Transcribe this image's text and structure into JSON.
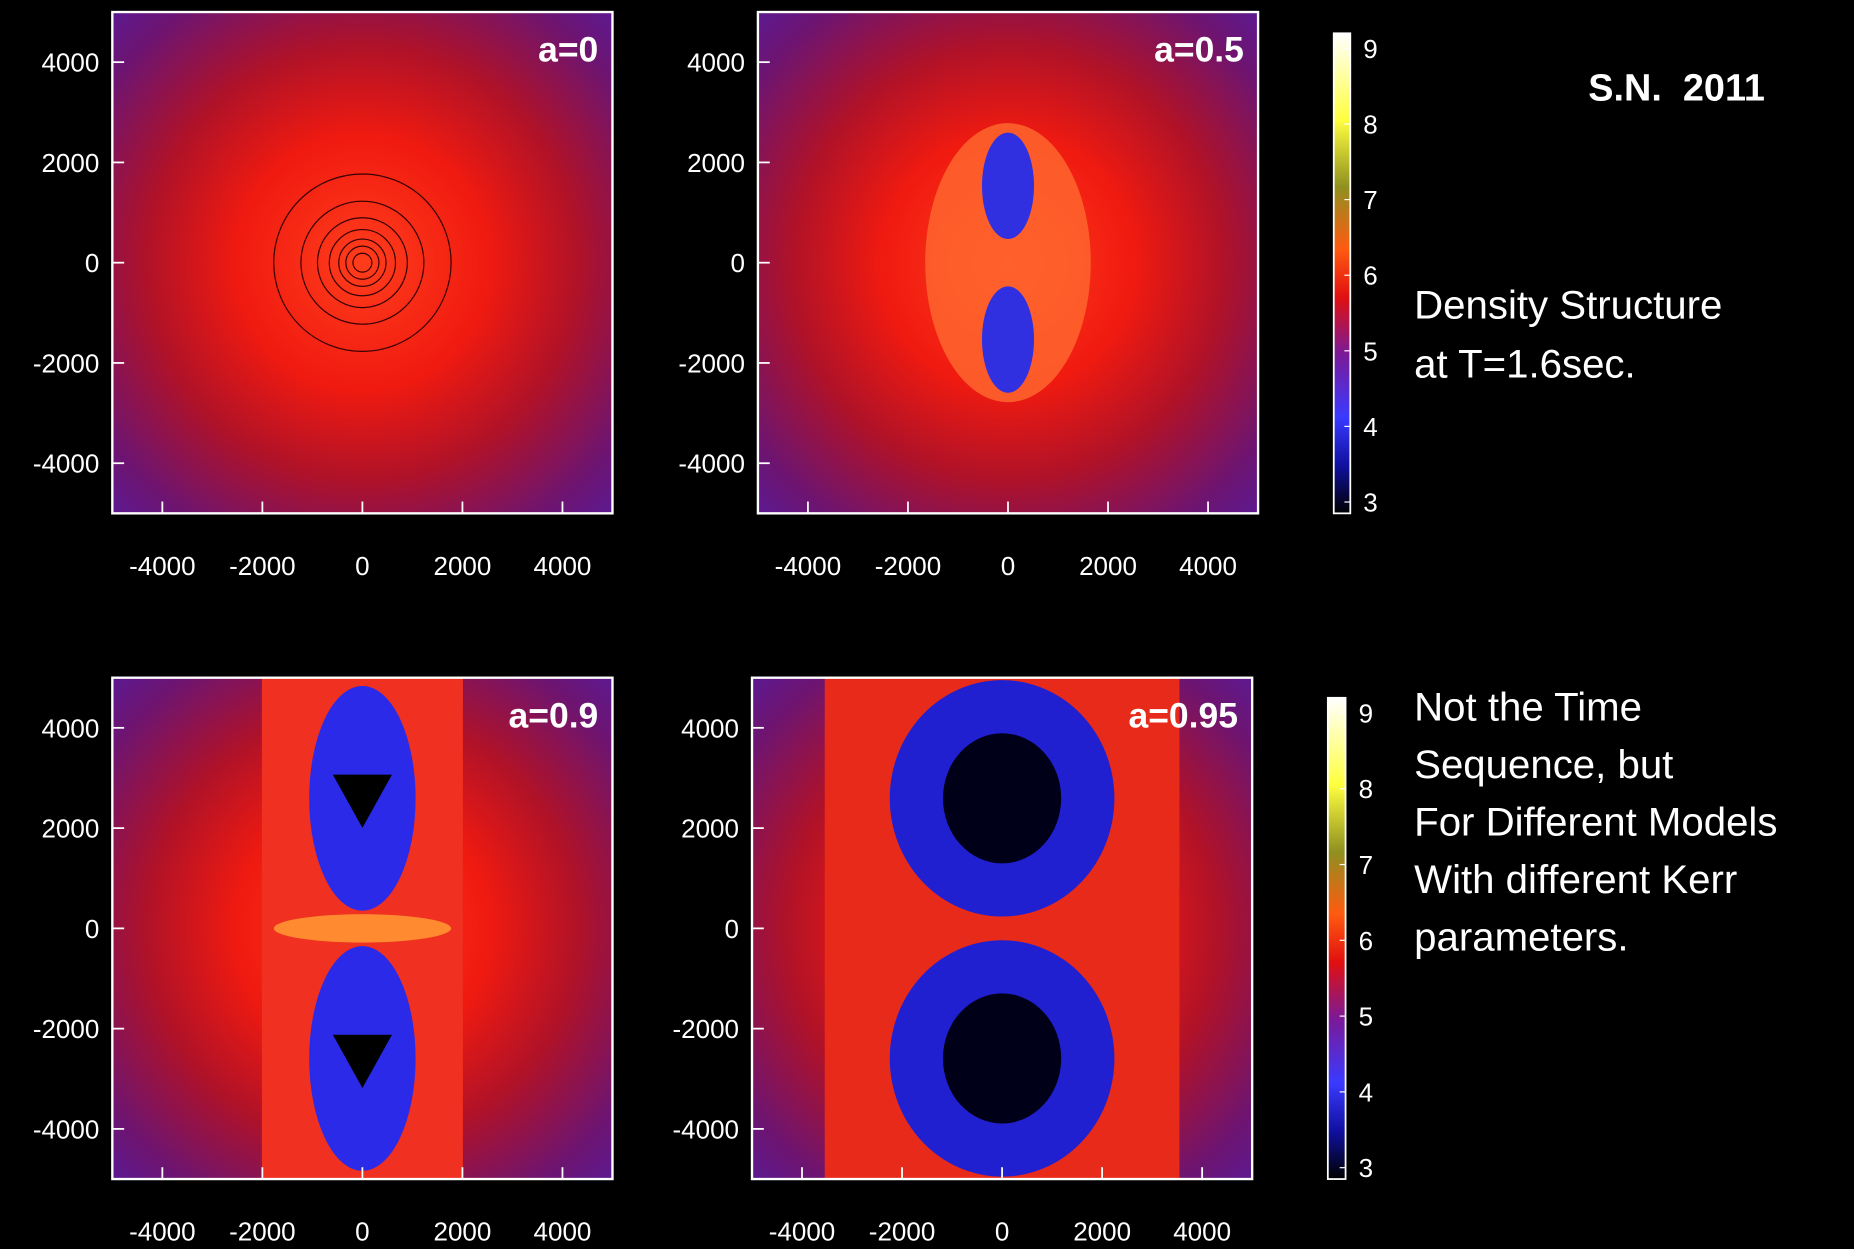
{
  "panels": [
    {
      "label": "a=0",
      "xlim": [
        -5000,
        5000
      ],
      "ylim": [
        -5000,
        5000
      ],
      "xticks": [
        -4000,
        -2000,
        0,
        2000,
        4000
      ],
      "yticks": [
        -4000,
        -2000,
        0,
        2000,
        4000
      ]
    },
    {
      "label": "a=0.5",
      "xlim": [
        -5000,
        5000
      ],
      "ylim": [
        -5000,
        5000
      ],
      "xticks": [
        -4000,
        -2000,
        0,
        2000,
        4000
      ],
      "yticks": [
        -4000,
        -2000,
        0,
        2000,
        4000
      ]
    },
    {
      "label": "a=0.9",
      "xlim": [
        -5000,
        5000
      ],
      "ylim": [
        -5000,
        5000
      ],
      "xticks": [
        -4000,
        -2000,
        0,
        2000,
        4000
      ],
      "yticks": [
        -4000,
        -2000,
        0,
        2000,
        4000
      ]
    },
    {
      "label": "a=0.95",
      "xlim": [
        -5000,
        5000
      ],
      "ylim": [
        -5000,
        5000
      ],
      "xticks": [
        -4000,
        -2000,
        0,
        2000,
        4000
      ],
      "yticks": [
        -4000,
        -2000,
        0,
        2000,
        4000
      ]
    }
  ],
  "colorbars": [
    {
      "lim": [
        2.85,
        9.2
      ],
      "ticks": [
        3,
        4,
        5,
        6,
        7,
        8,
        9
      ]
    },
    {
      "lim": [
        2.85,
        9.2
      ],
      "ticks": [
        3,
        4,
        5,
        6,
        7,
        8,
        9
      ]
    }
  ],
  "notes": {
    "title": "S.N.  2011",
    "caption1": [
      "Density Structure",
      "at T=1.6sec."
    ],
    "caption2": [
      "Not the Time",
      "Sequence, but",
      "For Different Models",
      "With different Kerr",
      "parameters."
    ]
  }
}
